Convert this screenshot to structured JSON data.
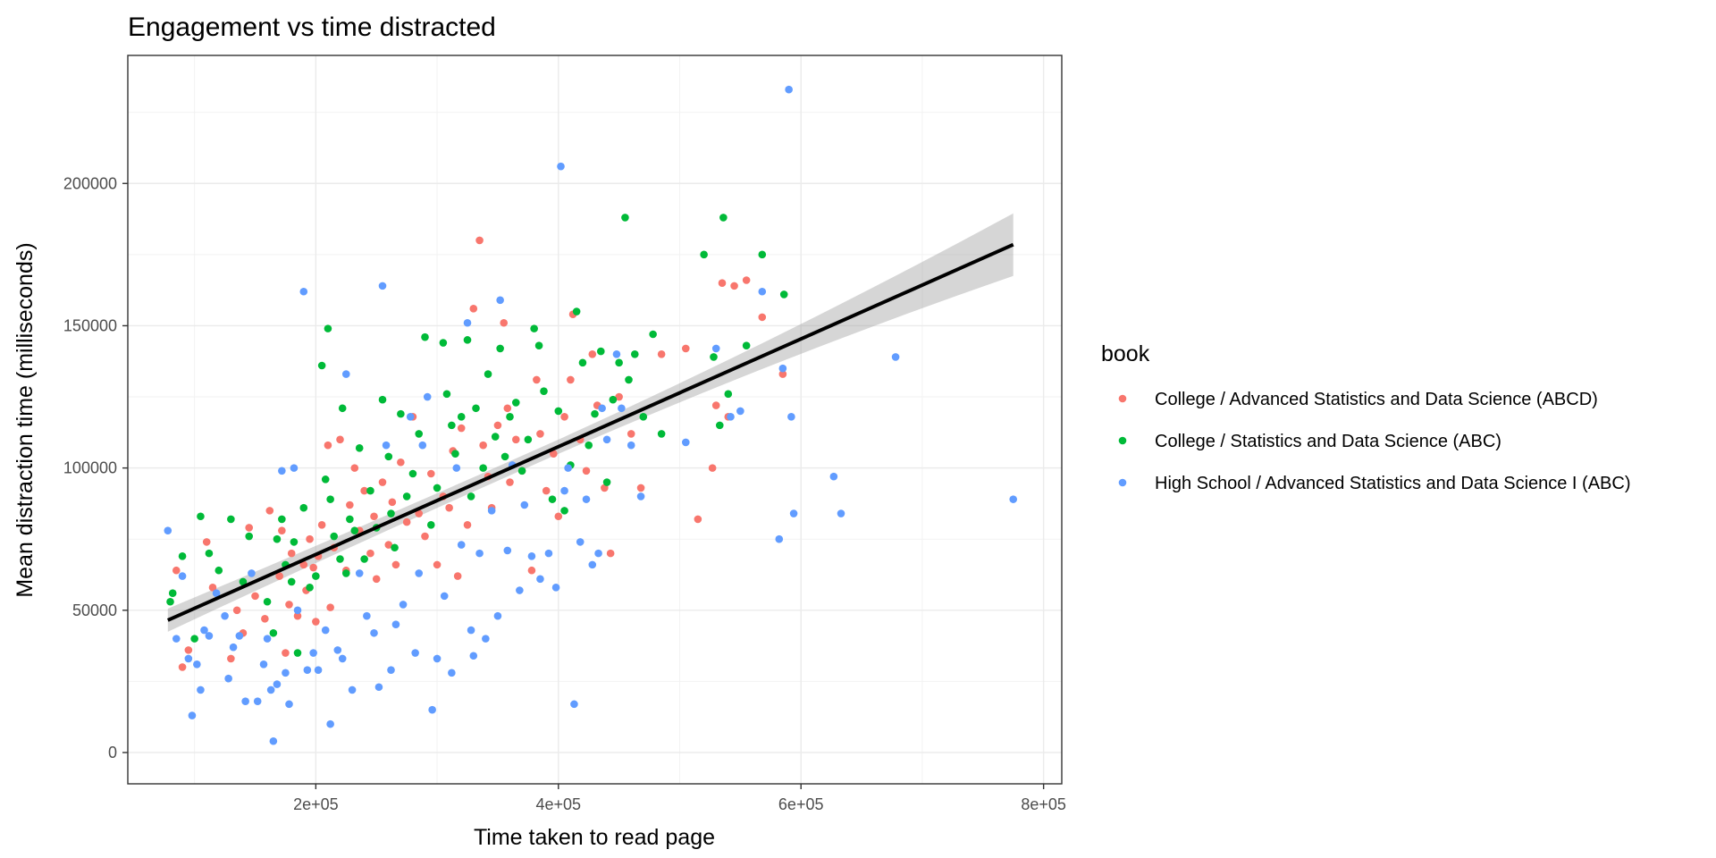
{
  "chart_data": {
    "type": "scatter",
    "title": "Engagement vs time distracted",
    "xlabel": "Time taken to read page",
    "ylabel": "Mean distraction time (milliseconds)",
    "xlim": [
      45000,
      815000
    ],
    "ylim": [
      -11000,
      245000
    ],
    "x_ticks": [
      200000,
      400000,
      600000,
      800000
    ],
    "x_tick_labels": [
      "2e+05",
      "4e+05",
      "6e+05",
      "8e+05"
    ],
    "y_ticks": [
      0,
      50000,
      100000,
      150000,
      200000
    ],
    "y_tick_labels": [
      "0",
      "50000",
      "100000",
      "150000",
      "200000"
    ],
    "grid": true,
    "legend": {
      "title": "book",
      "position": "right"
    },
    "series": [
      {
        "name": "College / Advanced Statistics and Data Science (ABCD)",
        "color": "#F8766D",
        "points": [
          [
            85000,
            64000
          ],
          [
            95000,
            36000
          ],
          [
            90000,
            30000
          ],
          [
            110000,
            74000
          ],
          [
            115000,
            58000
          ],
          [
            130000,
            33000
          ],
          [
            135000,
            50000
          ],
          [
            140000,
            42000
          ],
          [
            145000,
            79000
          ],
          [
            150000,
            55000
          ],
          [
            158000,
            47000
          ],
          [
            162000,
            85000
          ],
          [
            170000,
            62000
          ],
          [
            172000,
            78000
          ],
          [
            175000,
            35000
          ],
          [
            178000,
            52000
          ],
          [
            180000,
            70000
          ],
          [
            185000,
            48000
          ],
          [
            190000,
            66000
          ],
          [
            192000,
            57000
          ],
          [
            195000,
            75000
          ],
          [
            198000,
            65000
          ],
          [
            200000,
            46000
          ],
          [
            202000,
            69000
          ],
          [
            205000,
            80000
          ],
          [
            210000,
            108000
          ],
          [
            212000,
            51000
          ],
          [
            215000,
            72000
          ],
          [
            220000,
            110000
          ],
          [
            225000,
            64000
          ],
          [
            228000,
            87000
          ],
          [
            232000,
            100000
          ],
          [
            236000,
            78000
          ],
          [
            240000,
            92000
          ],
          [
            245000,
            70000
          ],
          [
            248000,
            83000
          ],
          [
            250000,
            61000
          ],
          [
            255000,
            95000
          ],
          [
            260000,
            73000
          ],
          [
            263000,
            88000
          ],
          [
            266000,
            66000
          ],
          [
            270000,
            102000
          ],
          [
            275000,
            81000
          ],
          [
            280000,
            118000
          ],
          [
            285000,
            84000
          ],
          [
            290000,
            76000
          ],
          [
            295000,
            98000
          ],
          [
            300000,
            66000
          ],
          [
            305000,
            90000
          ],
          [
            310000,
            86000
          ],
          [
            313000,
            106000
          ],
          [
            317000,
            62000
          ],
          [
            320000,
            114000
          ],
          [
            325000,
            80000
          ],
          [
            330000,
            156000
          ],
          [
            335000,
            180000
          ],
          [
            338000,
            108000
          ],
          [
            342000,
            97000
          ],
          [
            345000,
            86000
          ],
          [
            350000,
            115000
          ],
          [
            355000,
            151000
          ],
          [
            358000,
            121000
          ],
          [
            360000,
            95000
          ],
          [
            365000,
            110000
          ],
          [
            370000,
            99000
          ],
          [
            378000,
            64000
          ],
          [
            382000,
            131000
          ],
          [
            385000,
            112000
          ],
          [
            390000,
            92000
          ],
          [
            396000,
            105000
          ],
          [
            400000,
            83000
          ],
          [
            405000,
            118000
          ],
          [
            410000,
            131000
          ],
          [
            412000,
            154000
          ],
          [
            418000,
            110000
          ],
          [
            423000,
            99000
          ],
          [
            428000,
            140000
          ],
          [
            432000,
            122000
          ],
          [
            438000,
            93000
          ],
          [
            443000,
            70000
          ],
          [
            450000,
            125000
          ],
          [
            460000,
            112000
          ],
          [
            468000,
            93000
          ],
          [
            485000,
            140000
          ],
          [
            505000,
            142000
          ],
          [
            515000,
            82000
          ],
          [
            527000,
            100000
          ],
          [
            530000,
            122000
          ],
          [
            535000,
            165000
          ],
          [
            540000,
            118000
          ],
          [
            545000,
            164000
          ],
          [
            555000,
            166000
          ],
          [
            568000,
            153000
          ],
          [
            585000,
            133000
          ]
        ]
      },
      {
        "name": "College / Statistics and Data Science (ABC)",
        "color": "#00BA38",
        "points": [
          [
            80000,
            53000
          ],
          [
            82000,
            56000
          ],
          [
            90000,
            69000
          ],
          [
            100000,
            40000
          ],
          [
            105000,
            83000
          ],
          [
            112000,
            70000
          ],
          [
            120000,
            64000
          ],
          [
            130000,
            82000
          ],
          [
            140000,
            60000
          ],
          [
            145000,
            76000
          ],
          [
            160000,
            53000
          ],
          [
            165000,
            42000
          ],
          [
            168000,
            75000
          ],
          [
            172000,
            82000
          ],
          [
            175000,
            66000
          ],
          [
            180000,
            60000
          ],
          [
            182000,
            74000
          ],
          [
            185000,
            35000
          ],
          [
            190000,
            86000
          ],
          [
            195000,
            58000
          ],
          [
            200000,
            62000
          ],
          [
            205000,
            136000
          ],
          [
            208000,
            96000
          ],
          [
            210000,
            149000
          ],
          [
            212000,
            89000
          ],
          [
            215000,
            76000
          ],
          [
            220000,
            68000
          ],
          [
            222000,
            121000
          ],
          [
            225000,
            63000
          ],
          [
            228000,
            82000
          ],
          [
            232000,
            78000
          ],
          [
            236000,
            107000
          ],
          [
            240000,
            68000
          ],
          [
            245000,
            92000
          ],
          [
            250000,
            79000
          ],
          [
            255000,
            124000
          ],
          [
            260000,
            104000
          ],
          [
            262000,
            84000
          ],
          [
            265000,
            72000
          ],
          [
            270000,
            119000
          ],
          [
            275000,
            90000
          ],
          [
            280000,
            98000
          ],
          [
            285000,
            112000
          ],
          [
            290000,
            146000
          ],
          [
            295000,
            80000
          ],
          [
            300000,
            93000
          ],
          [
            305000,
            144000
          ],
          [
            308000,
            126000
          ],
          [
            312000,
            115000
          ],
          [
            315000,
            105000
          ],
          [
            320000,
            118000
          ],
          [
            325000,
            145000
          ],
          [
            328000,
            90000
          ],
          [
            332000,
            121000
          ],
          [
            338000,
            100000
          ],
          [
            342000,
            133000
          ],
          [
            348000,
            111000
          ],
          [
            352000,
            142000
          ],
          [
            356000,
            104000
          ],
          [
            360000,
            118000
          ],
          [
            365000,
            123000
          ],
          [
            370000,
            99000
          ],
          [
            375000,
            110000
          ],
          [
            380000,
            149000
          ],
          [
            384000,
            143000
          ],
          [
            388000,
            127000
          ],
          [
            395000,
            89000
          ],
          [
            400000,
            120000
          ],
          [
            405000,
            85000
          ],
          [
            410000,
            101000
          ],
          [
            415000,
            155000
          ],
          [
            420000,
            137000
          ],
          [
            425000,
            108000
          ],
          [
            430000,
            119000
          ],
          [
            435000,
            141000
          ],
          [
            440000,
            95000
          ],
          [
            445000,
            124000
          ],
          [
            450000,
            137000
          ],
          [
            455000,
            188000
          ],
          [
            458000,
            131000
          ],
          [
            463000,
            140000
          ],
          [
            470000,
            118000
          ],
          [
            478000,
            147000
          ],
          [
            485000,
            112000
          ],
          [
            520000,
            175000
          ],
          [
            528000,
            139000
          ],
          [
            533000,
            115000
          ],
          [
            536000,
            188000
          ],
          [
            540000,
            126000
          ],
          [
            555000,
            143000
          ],
          [
            568000,
            175000
          ],
          [
            586000,
            161000
          ]
        ]
      },
      {
        "name": "High School / Advanced Statistics and Data Science I (ABC)",
        "color": "#619CFF",
        "points": [
          [
            78000,
            78000
          ],
          [
            85000,
            40000
          ],
          [
            90000,
            62000
          ],
          [
            95000,
            33000
          ],
          [
            98000,
            13000
          ],
          [
            102000,
            31000
          ],
          [
            105000,
            22000
          ],
          [
            108000,
            43000
          ],
          [
            112000,
            41000
          ],
          [
            118000,
            56000
          ],
          [
            125000,
            48000
          ],
          [
            128000,
            26000
          ],
          [
            132000,
            37000
          ],
          [
            137000,
            41000
          ],
          [
            142000,
            18000
          ],
          [
            147000,
            63000
          ],
          [
            152000,
            18000
          ],
          [
            157000,
            31000
          ],
          [
            160000,
            40000
          ],
          [
            163000,
            22000
          ],
          [
            165000,
            4000
          ],
          [
            168000,
            24000
          ],
          [
            172000,
            99000
          ],
          [
            175000,
            28000
          ],
          [
            178000,
            17000
          ],
          [
            182000,
            100000
          ],
          [
            185000,
            50000
          ],
          [
            190000,
            162000
          ],
          [
            193000,
            29000
          ],
          [
            198000,
            35000
          ],
          [
            202000,
            29000
          ],
          [
            208000,
            43000
          ],
          [
            212000,
            10000
          ],
          [
            218000,
            36000
          ],
          [
            222000,
            33000
          ],
          [
            225000,
            133000
          ],
          [
            230000,
            22000
          ],
          [
            236000,
            63000
          ],
          [
            242000,
            48000
          ],
          [
            248000,
            42000
          ],
          [
            252000,
            23000
          ],
          [
            255000,
            164000
          ],
          [
            258000,
            108000
          ],
          [
            262000,
            29000
          ],
          [
            266000,
            45000
          ],
          [
            272000,
            52000
          ],
          [
            278000,
            118000
          ],
          [
            282000,
            35000
          ],
          [
            285000,
            63000
          ],
          [
            288000,
            108000
          ],
          [
            292000,
            125000
          ],
          [
            296000,
            15000
          ],
          [
            300000,
            33000
          ],
          [
            306000,
            55000
          ],
          [
            312000,
            28000
          ],
          [
            316000,
            100000
          ],
          [
            320000,
            73000
          ],
          [
            325000,
            151000
          ],
          [
            328000,
            43000
          ],
          [
            330000,
            34000
          ],
          [
            335000,
            70000
          ],
          [
            340000,
            40000
          ],
          [
            345000,
            85000
          ],
          [
            350000,
            48000
          ],
          [
            352000,
            159000
          ],
          [
            358000,
            71000
          ],
          [
            362000,
            101000
          ],
          [
            368000,
            57000
          ],
          [
            372000,
            87000
          ],
          [
            378000,
            69000
          ],
          [
            385000,
            61000
          ],
          [
            392000,
            70000
          ],
          [
            398000,
            58000
          ],
          [
            402000,
            206000
          ],
          [
            405000,
            92000
          ],
          [
            408000,
            100000
          ],
          [
            413000,
            17000
          ],
          [
            418000,
            74000
          ],
          [
            423000,
            89000
          ],
          [
            428000,
            66000
          ],
          [
            433000,
            70000
          ],
          [
            436000,
            121000
          ],
          [
            440000,
            110000
          ],
          [
            448000,
            140000
          ],
          [
            452000,
            121000
          ],
          [
            460000,
            108000
          ],
          [
            468000,
            90000
          ],
          [
            505000,
            109000
          ],
          [
            530000,
            142000
          ],
          [
            542000,
            118000
          ],
          [
            550000,
            120000
          ],
          [
            568000,
            162000
          ],
          [
            582000,
            75000
          ],
          [
            585000,
            135000
          ],
          [
            590000,
            233000
          ],
          [
            592000,
            118000
          ],
          [
            594000,
            84000
          ],
          [
            627000,
            97000
          ],
          [
            633000,
            84000
          ],
          [
            678000,
            139000
          ],
          [
            775000,
            89000
          ]
        ]
      }
    ],
    "trend": {
      "type": "linear",
      "x_range": [
        78000,
        775000
      ],
      "y_range": [
        46500,
        178500
      ],
      "ci_lower_range": [
        41000,
        168000
      ],
      "ci_upper_range": [
        52000,
        189500
      ],
      "line_color": "#000000",
      "band_color": "#999999"
    }
  }
}
